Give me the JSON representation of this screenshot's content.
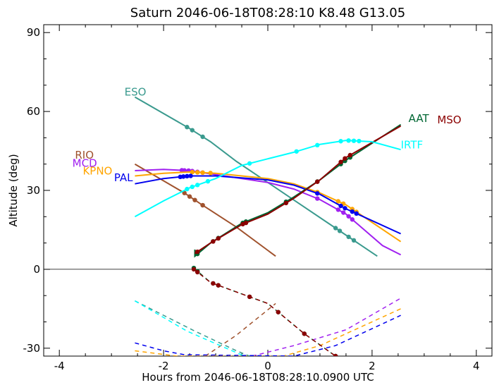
{
  "chart_data": {
    "type": "line",
    "title": "Saturn 2046-06-18T08:28:10  K8.48  G13.05",
    "xlabel": "Hours from 2046-06-18T08:28:10.0900 UTC",
    "ylabel": "Altitude (deg)",
    "xlim": [
      -4.3,
      4.3
    ],
    "ylim": [
      -33,
      93
    ],
    "xticks": [
      -4,
      -2,
      0,
      2,
      4
    ],
    "yticks": [
      -30,
      0,
      30,
      60,
      90
    ],
    "x_tick_labels": [
      "-4",
      "-2",
      "0",
      "2",
      "4"
    ],
    "y_tick_labels": [
      "-30",
      "0",
      "30",
      "60",
      "90"
    ],
    "grid": false,
    "legend": "labels at line ends",
    "series": [
      {
        "name": "ESO",
        "color": "#3a9a8e",
        "label_at": [
          -2.75,
          66
        ],
        "points": [
          [
            -2.55,
            65.5
          ],
          [
            -1.5,
            53.5
          ],
          [
            -1.1,
            48.5
          ],
          [
            -0.6,
            41
          ],
          [
            0,
            33
          ],
          [
            0.6,
            25
          ],
          [
            1.2,
            17
          ],
          [
            2.1,
            5
          ]
        ],
        "markers": [
          -1.55,
          -1.45,
          -1.25,
          1.3,
          1.38,
          1.55,
          1.65
        ],
        "below": [
          [
            -2.55,
            -12
          ],
          [
            -1.4,
            -23.5
          ],
          [
            -0.6,
            -31
          ],
          [
            -0.35,
            -33
          ]
        ]
      },
      {
        "name": "RIO",
        "color": "#a0522d",
        "label_at": [
          -3.7,
          42
        ],
        "points": [
          [
            -2.55,
            40
          ],
          [
            -1.6,
            29
          ],
          [
            -1.3,
            25
          ],
          [
            -0.6,
            16
          ],
          [
            0.15,
            5
          ]
        ],
        "markers": [
          -1.6,
          -1.5,
          -1.4,
          -1.25,
          -1.25
        ],
        "below": [
          [
            -1.2,
            -33
          ],
          [
            -0.6,
            -25
          ],
          [
            0.15,
            -13
          ]
        ]
      },
      {
        "name": "MCD",
        "color": "#a020f0",
        "label_at": [
          -3.75,
          39
        ],
        "points": [
          [
            -2.55,
            37.5
          ],
          [
            -2,
            38
          ],
          [
            -1.5,
            37.5
          ],
          [
            -1,
            36
          ],
          [
            0,
            33
          ],
          [
            0.5,
            30.5
          ],
          [
            1,
            26.5
          ],
          [
            1.5,
            21
          ],
          [
            2.2,
            9
          ],
          [
            2.55,
            5.5
          ]
        ],
        "markers": [
          -1.65,
          -1.6,
          -1.52,
          -1.45,
          -1.25,
          -1.35,
          0.95,
          1.35,
          1.45,
          1.55,
          1.62
        ],
        "below": [
          [
            -0.3,
            -33
          ],
          [
            0.5,
            -29
          ],
          [
            1.5,
            -23
          ],
          [
            2.55,
            -11
          ]
        ]
      },
      {
        "name": "KPNO",
        "color": "#ffa500",
        "label_at": [
          -3.55,
          36
        ],
        "points": [
          [
            -2.55,
            35.5
          ],
          [
            -2,
            36.5
          ],
          [
            -1.5,
            37
          ],
          [
            -1,
            36.5
          ],
          [
            0,
            34.5
          ],
          [
            0.5,
            32.5
          ],
          [
            1,
            29
          ],
          [
            1.5,
            24.5
          ],
          [
            2.55,
            10.5
          ]
        ],
        "markers": [
          -1.45,
          -1.35,
          -1.25,
          -1.1,
          0.95,
          1.35,
          1.45,
          1.62,
          1.7
        ],
        "below": [
          [
            -2.55,
            -31
          ],
          [
            -1.75,
            -33
          ],
          [
            0.3,
            -33
          ],
          [
            1.0,
            -29
          ],
          [
            2.55,
            -15
          ]
        ]
      },
      {
        "name": "PAL",
        "color": "#0000ee",
        "label_at": [
          -2.95,
          33.5
        ],
        "points": [
          [
            -2.55,
            32.5
          ],
          [
            -2,
            34.5
          ],
          [
            -1.5,
            35.5
          ],
          [
            -1,
            35.5
          ],
          [
            0,
            34
          ],
          [
            0.5,
            32
          ],
          [
            1,
            28.5
          ],
          [
            1.5,
            23
          ],
          [
            2.55,
            13.5
          ]
        ],
        "markers": [
          -1.68,
          -1.62,
          -1.55,
          -1.48,
          0.95,
          1.4,
          1.48,
          1.62,
          1.7
        ],
        "below": [
          [
            -2.55,
            -28
          ],
          [
            -2,
            -31
          ],
          [
            -1.6,
            -32.5
          ],
          [
            0.5,
            -33
          ],
          [
            1.3,
            -29
          ],
          [
            2.55,
            -17.5
          ]
        ]
      },
      {
        "name": "AAT",
        "color": "#006633",
        "label_at": [
          2.7,
          56
        ],
        "points": [
          [
            -1.4,
            7.5
          ],
          [
            -1.4,
            5
          ],
          [
            -1.1,
            10
          ],
          [
            -0.5,
            17.5
          ],
          [
            0,
            21.5
          ],
          [
            0.5,
            27.5
          ],
          [
            1,
            34
          ],
          [
            1.5,
            41.5
          ],
          [
            2.55,
            55
          ]
        ],
        "markers": [
          -1.48,
          -1.42,
          -1.35,
          -1.05,
          -0.95,
          -0.48,
          -0.42,
          0.35,
          0.95,
          1.4,
          1.48,
          1.58
        ],
        "below": [
          [
            -1.42,
            0.5
          ],
          [
            -1.1,
            -5
          ],
          [
            0,
            -13
          ],
          [
            0.7,
            -24.5
          ],
          [
            1.3,
            -33
          ]
        ],
        "below_markers": [
          -1.48,
          -1.42,
          -1.35,
          -1.05,
          -0.95,
          -0.35,
          0.2,
          0.7,
          1.3
        ]
      },
      {
        "name": "MSO",
        "color": "#8b0000",
        "label_at": [
          3.25,
          55.5
        ],
        "points": [
          [
            -1.4,
            6
          ],
          [
            -1.1,
            10
          ],
          [
            -0.5,
            17
          ],
          [
            0,
            21
          ],
          [
            0.5,
            27
          ],
          [
            1,
            34
          ],
          [
            1.5,
            42.5
          ],
          [
            2.55,
            54.5
          ]
        ],
        "markers": [
          -1.48,
          -1.42,
          -1.35,
          -1.05,
          -0.95,
          -0.48,
          -0.42,
          0.35,
          0.95,
          1.4,
          1.48,
          1.58
        ],
        "below": [
          [
            -1.42,
            0
          ],
          [
            -1.1,
            -5
          ],
          [
            0,
            -13
          ],
          [
            0.7,
            -24.5
          ],
          [
            1.3,
            -33
          ]
        ],
        "below_markers": [
          -1.48,
          -1.42,
          -1.35,
          -1.05,
          -0.95,
          -0.35,
          0.2,
          0.7,
          1.3
        ]
      },
      {
        "name": "IRTF",
        "color": "#00ffff",
        "label_at": [
          2.55,
          46
        ],
        "points": [
          [
            -2.55,
            20
          ],
          [
            -2,
            26
          ],
          [
            -1.5,
            31
          ],
          [
            -1,
            34.5
          ],
          [
            -0.5,
            39.5
          ],
          [
            0,
            42
          ],
          [
            0.5,
            44.5
          ],
          [
            1,
            47.5
          ],
          [
            1.5,
            49
          ],
          [
            2,
            48.5
          ],
          [
            2.55,
            45.5
          ]
        ],
        "markers": [
          -1.55,
          -1.45,
          -1.35,
          -1.15,
          -0.35,
          0.55,
          0.95,
          1.4,
          1.55,
          1.65,
          1.75
        ],
        "below": [
          [
            -2.55,
            -12
          ],
          [
            -1.55,
            -23.5
          ],
          [
            -0.8,
            -30
          ],
          [
            -0.45,
            -33
          ]
        ]
      }
    ]
  }
}
